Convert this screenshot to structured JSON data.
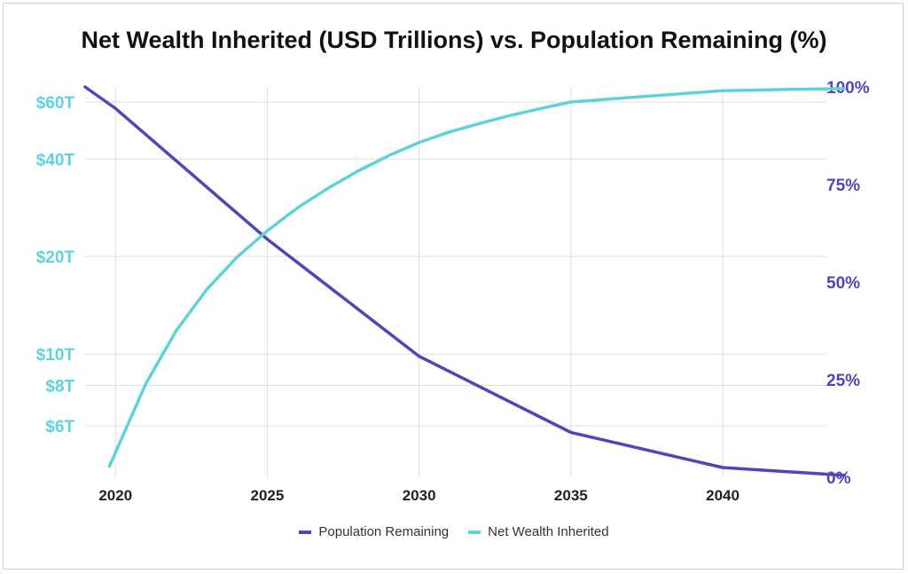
{
  "chart_data": {
    "type": "line",
    "title": "Net Wealth Inherited (USD Trillions) vs. Population Remaining (%)",
    "x": [
      2019,
      2020,
      2021,
      2022,
      2023,
      2024,
      2025,
      2026,
      2027,
      2028,
      2029,
      2030,
      2031,
      2032,
      2033,
      2034,
      2035,
      2036,
      2037,
      2038,
      2039,
      2040,
      2041,
      2042,
      2043,
      2044
    ],
    "xticks": [
      "2020",
      "2025",
      "2030",
      "2035",
      "2040"
    ],
    "xlim": [
      2019,
      2044
    ],
    "y_left": {
      "scale": "log",
      "ticks": [
        "$6T",
        "$8T",
        "$10T",
        "$20T",
        "$40T",
        "$60T"
      ],
      "color": "#5dd3d9"
    },
    "y_right": {
      "ticks": [
        "0%",
        "25%",
        "50%",
        "75%",
        "100%"
      ],
      "range": [
        0,
        100
      ],
      "color": "#4f46b8"
    },
    "series": [
      {
        "name": "Population Remaining",
        "axis": "right",
        "color": "#4f46b8",
        "x": [
          2019,
          2020,
          2025,
          2030,
          2035,
          2040,
          2044
        ],
        "values": [
          100,
          94.5,
          61,
          31,
          11.5,
          2.5,
          0.5
        ]
      },
      {
        "name": "Net Wealth Inherited",
        "axis": "left",
        "color": "#5dd3d9",
        "x": [
          2019.8,
          2021,
          2022,
          2023,
          2024,
          2025,
          2026,
          2027,
          2028,
          2029,
          2030,
          2031,
          2032,
          2033,
          2034,
          2035,
          2036,
          2037,
          2038,
          2039,
          2040,
          2041,
          2042,
          2043,
          2044
        ],
        "values": [
          4.5,
          8.1,
          11.8,
          15.8,
          19.9,
          24.0,
          28.3,
          32.5,
          36.8,
          41.0,
          45.0,
          48.5,
          51.5,
          54.5,
          57.3,
          60.0,
          61.0,
          62.0,
          63.0,
          64.0,
          65.0,
          65.3,
          65.6,
          65.8,
          66.0
        ]
      }
    ],
    "grid": true,
    "legend_position": "bottom-center"
  },
  "legend": {
    "items": [
      {
        "label": "Population Remaining",
        "color": "#4f46b8"
      },
      {
        "label": "Net Wealth Inherited",
        "color": "#5dd3d9"
      }
    ]
  }
}
